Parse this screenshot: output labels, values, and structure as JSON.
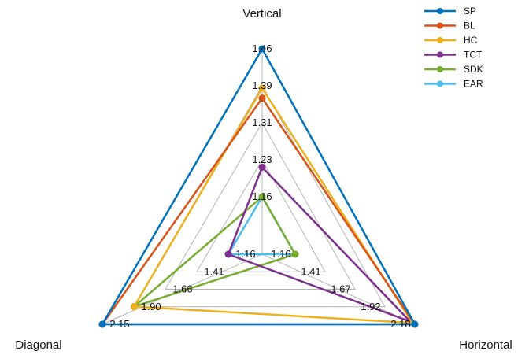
{
  "chart_data": {
    "type": "radar",
    "axes": [
      {
        "name": "Vertical",
        "ticks": [
          "1.16",
          "1.23",
          "1.31",
          "1.39",
          "1.46"
        ],
        "range": [
          1.16,
          1.46
        ]
      },
      {
        "name": "Horizontal",
        "ticks": [
          "1.16",
          "1.41",
          "1.67",
          "1.92",
          "2.18"
        ],
        "range": [
          1.16,
          2.18
        ]
      },
      {
        "name": "Diagonal",
        "ticks": [
          "1.16",
          "1.41",
          "1.66",
          "1.90",
          "2.15"
        ],
        "range": [
          1.16,
          2.15
        ]
      }
    ],
    "series": [
      {
        "name": "SP",
        "color": "#0072BD",
        "values": [
          1.46,
          2.18,
          2.15
        ]
      },
      {
        "name": "BL",
        "color": "#D95319",
        "values": [
          1.36,
          2.18,
          2.15
        ]
      },
      {
        "name": "HC",
        "color": "#EDB120",
        "values": [
          1.38,
          2.16,
          1.9
        ]
      },
      {
        "name": "TCT",
        "color": "#7E2F8E",
        "values": [
          1.22,
          2.14,
          1.16
        ]
      },
      {
        "name": "SDK",
        "color": "#77AC30",
        "values": [
          1.16,
          1.16,
          1.9
        ]
      },
      {
        "name": "EAR",
        "color": "#4DBEEE",
        "values": [
          1.16,
          1.16,
          1.16
        ]
      }
    ],
    "legend_position": "top-right",
    "grid": true
  }
}
